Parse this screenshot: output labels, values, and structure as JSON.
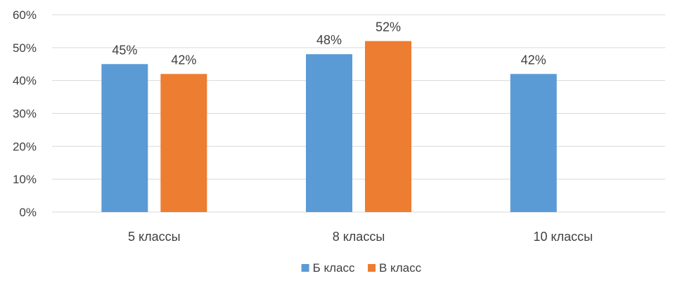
{
  "chart_data": {
    "type": "bar",
    "title": "",
    "xlabel": "",
    "ylabel": "",
    "categories": [
      "5 классы",
      "8 классы",
      "10 классы"
    ],
    "series": [
      {
        "name": "Б класс",
        "color": "#5B9BD5",
        "values": [
          45,
          48,
          42
        ]
      },
      {
        "name": "В класс",
        "color": "#ED7D31",
        "values": [
          42,
          52,
          null
        ]
      }
    ],
    "ylim": [
      0,
      60
    ],
    "yticks": [
      0,
      10,
      20,
      30,
      40,
      50,
      60
    ],
    "value_format": "percent",
    "grid": true,
    "gridline_color": "#D9D9D9",
    "legend_position": "bottom"
  }
}
